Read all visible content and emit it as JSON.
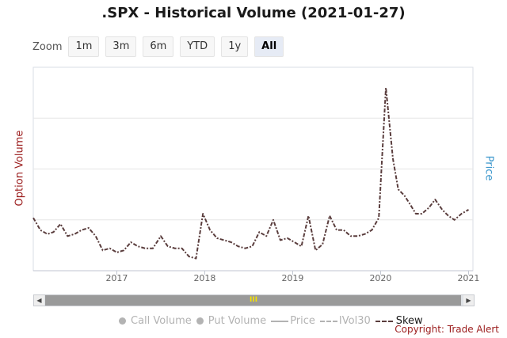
{
  "title": ".SPX - Historical Volume (2021-01-27)",
  "zoom": {
    "label": "Zoom",
    "buttons": [
      "1m",
      "3m",
      "6m",
      "YTD",
      "1y",
      "All"
    ],
    "active": "All"
  },
  "y_left_label": "Option Volume",
  "y_right_label": "Price",
  "legend": {
    "call_volume": "Call Volume",
    "put_volume": "Put Volume",
    "price": "Price",
    "ivol30": "IVol30",
    "skew": "Skew"
  },
  "copyright": "Copyright: Trade Alert",
  "colors": {
    "skew": "#5a3d3d",
    "left_axis": "#9b1c1c",
    "right_axis": "#3a96cc",
    "grid": "#e6e6e6"
  },
  "chart_data": {
    "type": "line",
    "x_ticks": [
      "2017",
      "2018",
      "2019",
      "2020",
      "2021"
    ],
    "x_tick_years": [
      2017,
      2018,
      2019,
      2020,
      2021
    ],
    "xlim": [
      2016.05,
      2021.05
    ],
    "ylim": [
      0,
      1
    ],
    "grid": true,
    "series": [
      {
        "name": "Skew",
        "x": [
          2016.05,
          2016.13,
          2016.21,
          2016.28,
          2016.36,
          2016.44,
          2016.52,
          2016.6,
          2016.68,
          2016.76,
          2016.84,
          2016.92,
          2017.0,
          2017.08,
          2017.16,
          2017.24,
          2017.32,
          2017.41,
          2017.5,
          2017.58,
          2017.66,
          2017.74,
          2017.82,
          2017.9,
          2017.98,
          2018.06,
          2018.14,
          2018.22,
          2018.3,
          2018.38,
          2018.46,
          2018.54,
          2018.62,
          2018.7,
          2018.78,
          2018.86,
          2018.94,
          2019.02,
          2019.1,
          2019.18,
          2019.26,
          2019.34,
          2019.42,
          2019.5,
          2019.58,
          2019.66,
          2019.74,
          2019.82,
          2019.9,
          2019.98,
          2020.06,
          2020.14,
          2020.2,
          2020.27,
          2020.33,
          2020.4,
          2020.47,
          2020.55,
          2020.62,
          2020.7,
          2020.77,
          2020.84,
          2020.92,
          2021.0
        ],
        "values": [
          0.26,
          0.2,
          0.18,
          0.19,
          0.23,
          0.17,
          0.18,
          0.2,
          0.21,
          0.17,
          0.1,
          0.11,
          0.09,
          0.1,
          0.14,
          0.12,
          0.11,
          0.11,
          0.17,
          0.12,
          0.11,
          0.11,
          0.07,
          0.06,
          0.28,
          0.2,
          0.16,
          0.15,
          0.14,
          0.12,
          0.11,
          0.12,
          0.19,
          0.17,
          0.25,
          0.15,
          0.16,
          0.14,
          0.12,
          0.27,
          0.1,
          0.13,
          0.27,
          0.2,
          0.2,
          0.17,
          0.17,
          0.18,
          0.2,
          0.26,
          0.9,
          0.55,
          0.4,
          0.37,
          0.33,
          0.28,
          0.28,
          0.31,
          0.35,
          0.3,
          0.27,
          0.25,
          0.28,
          0.3
        ]
      }
    ]
  }
}
